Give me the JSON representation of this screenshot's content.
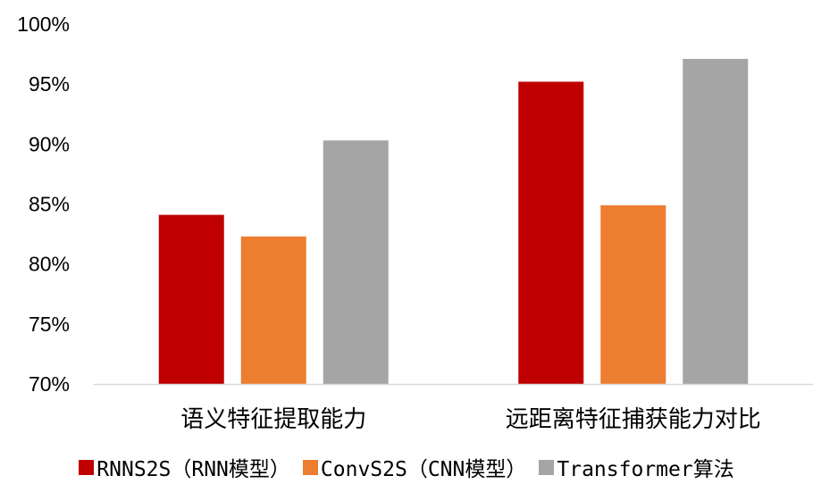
{
  "chart_data": {
    "type": "bar",
    "categories": [
      "语义特征提取能力",
      "远距离特征捕获能力对比"
    ],
    "series": [
      {
        "name": "RNNS2S（RNN模型）",
        "values": [
          84.1,
          95.2
        ],
        "color": "#c00000"
      },
      {
        "name": "ConvS2S（CNN模型）",
        "values": [
          82.3,
          84.9
        ],
        "color": "#ed7d31"
      },
      {
        "name": "Transformer算法",
        "values": [
          90.3,
          97.1
        ],
        "color": "#a5a5a5"
      }
    ],
    "y_ticks": [
      "70%",
      "75%",
      "80%",
      "85%",
      "90%",
      "95%",
      "100%"
    ],
    "ylim": [
      70,
      100
    ],
    "grid": false,
    "legend_position": "bottom"
  }
}
